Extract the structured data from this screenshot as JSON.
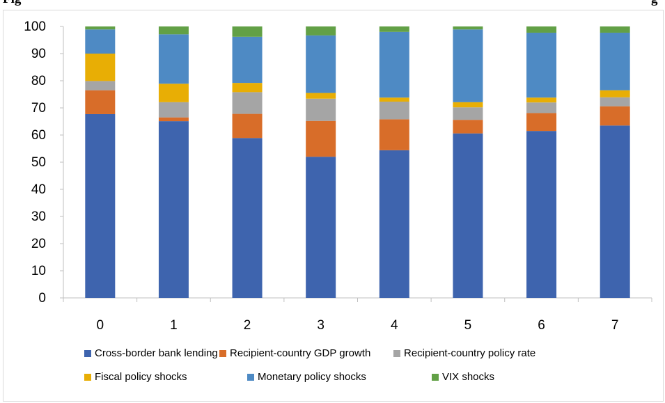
{
  "header_fragments": {
    "left": "Fig",
    "right": "g"
  },
  "chart_data": {
    "type": "bar",
    "stacked": true,
    "title": "",
    "xlabel": "",
    "ylabel": "",
    "ylim": [
      0,
      100
    ],
    "yticks": [
      0,
      10,
      20,
      30,
      40,
      50,
      60,
      70,
      80,
      90,
      100
    ],
    "categories": [
      "0",
      "1",
      "2",
      "3",
      "4",
      "5",
      "6",
      "7"
    ],
    "grid": false,
    "legend_position": "bottom",
    "series": [
      {
        "name": "Cross-border bank lending",
        "color": "#3e64ae",
        "values": [
          67.7,
          65.1,
          58.9,
          52.0,
          54.4,
          60.6,
          61.5,
          63.5
        ]
      },
      {
        "name": "Recipient-country GDP growth",
        "color": "#d86d29",
        "values": [
          8.8,
          1.4,
          8.9,
          13.2,
          11.4,
          5.0,
          6.6,
          7.1
        ]
      },
      {
        "name": "Recipient-country policy rate",
        "color": "#a5a5a5",
        "values": [
          3.4,
          5.6,
          8.0,
          8.2,
          6.5,
          4.6,
          3.9,
          3.3
        ]
      },
      {
        "name": "Fiscal policy shocks",
        "color": "#e8ae05",
        "values": [
          10.1,
          6.8,
          3.4,
          2.1,
          1.5,
          1.9,
          1.8,
          2.6
        ]
      },
      {
        "name": "Monetary policy shocks",
        "color": "#4e8ac4",
        "values": [
          8.9,
          18.2,
          17.0,
          21.2,
          24.2,
          26.8,
          23.9,
          21.2
        ]
      },
      {
        "name": "VIX shocks",
        "color": "#62a046",
        "values": [
          1.1,
          2.9,
          3.8,
          3.3,
          2.0,
          1.1,
          2.3,
          2.3
        ]
      }
    ]
  }
}
